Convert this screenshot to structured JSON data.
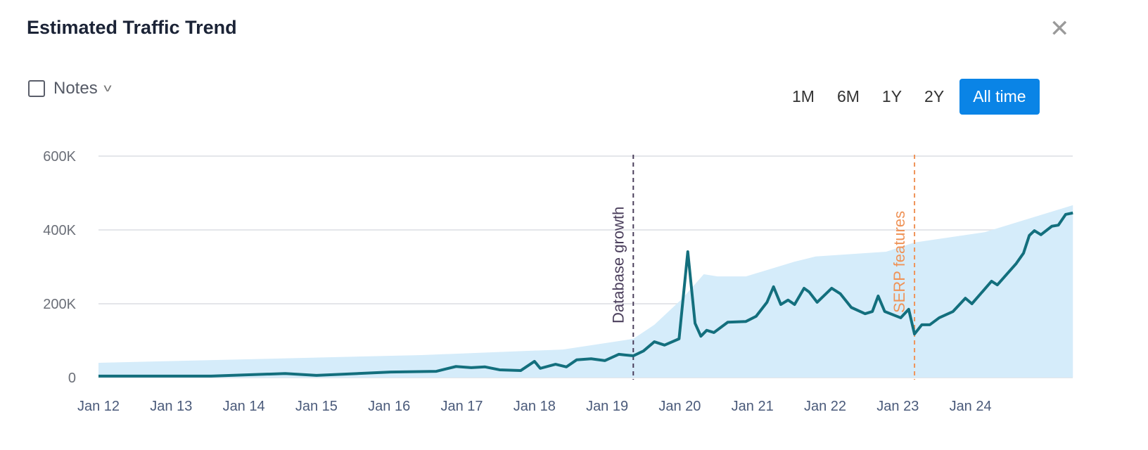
{
  "header": {
    "title": "Estimated Traffic Trend",
    "close_icon": "close-icon"
  },
  "notes": {
    "label": "Notes",
    "checked": false
  },
  "ranges": [
    {
      "label": "1M",
      "active": false
    },
    {
      "label": "6M",
      "active": false
    },
    {
      "label": "1Y",
      "active": false
    },
    {
      "label": "2Y",
      "active": false
    },
    {
      "label": "All time",
      "active": true
    }
  ],
  "colors": {
    "line": "#136f7d",
    "area": "#d5ecfa",
    "database_marker": "#4b3f5c",
    "serp_marker": "#ef9358",
    "active_button": "#0a84e6"
  },
  "chart_data": {
    "type": "line",
    "title": "",
    "xlabel": "",
    "ylabel": "",
    "ylim": [
      0,
      600000
    ],
    "xlim": [
      "2012-01",
      "2025-05"
    ],
    "grid": true,
    "y_ticks": [
      "0",
      "200K",
      "400K",
      "600K"
    ],
    "y_tick_values": [
      0,
      200000,
      400000,
      600000
    ],
    "x_ticks": [
      "Jan 12",
      "Jan 13",
      "Jan 14",
      "Jan 15",
      "Jan 16",
      "Jan 17",
      "Jan 18",
      "Jan 19",
      "Jan 20",
      "Jan 21",
      "Jan 22",
      "Jan 23",
      "Jan 24"
    ],
    "x_tick_values": [
      2012,
      2013,
      2014,
      2015,
      2016,
      2017,
      2018,
      2019,
      2020,
      2021,
      2022,
      2023,
      2024
    ],
    "annotations": [
      {
        "label": "Database growth",
        "x": 2019.36
      },
      {
        "label": "SERP features",
        "x": 2023.23
      }
    ],
    "series": [
      {
        "type": "line",
        "points": [
          [
            2012.0,
            4
          ],
          [
            2013.55,
            4
          ],
          [
            2014.57,
            11
          ],
          [
            2015.0,
            6
          ],
          [
            2016.02,
            15
          ],
          [
            2016.65,
            17
          ],
          [
            2016.92,
            30
          ],
          [
            2017.13,
            27
          ],
          [
            2017.32,
            29
          ],
          [
            2017.52,
            21
          ],
          [
            2017.81,
            19
          ],
          [
            2018.0,
            44
          ],
          [
            2018.08,
            25
          ],
          [
            2018.29,
            36
          ],
          [
            2018.44,
            29
          ],
          [
            2018.58,
            48
          ],
          [
            2018.78,
            51
          ],
          [
            2018.97,
            46
          ],
          [
            2019.16,
            63
          ],
          [
            2019.36,
            59
          ],
          [
            2019.5,
            72
          ],
          [
            2019.65,
            97
          ],
          [
            2019.79,
            88
          ],
          [
            2019.99,
            105
          ],
          [
            2020.11,
            341
          ],
          [
            2020.21,
            147
          ],
          [
            2020.29,
            112
          ],
          [
            2020.37,
            128
          ],
          [
            2020.47,
            122
          ],
          [
            2020.66,
            150
          ],
          [
            2020.91,
            152
          ],
          [
            2021.05,
            166
          ],
          [
            2021.2,
            204
          ],
          [
            2021.29,
            246
          ],
          [
            2021.39,
            198
          ],
          [
            2021.49,
            210
          ],
          [
            2021.58,
            198
          ],
          [
            2021.71,
            242
          ],
          [
            2021.78,
            232
          ],
          [
            2021.89,
            204
          ],
          [
            2022.09,
            242
          ],
          [
            2022.21,
            227
          ],
          [
            2022.36,
            190
          ],
          [
            2022.55,
            173
          ],
          [
            2022.65,
            179
          ],
          [
            2022.73,
            221
          ],
          [
            2022.82,
            179
          ],
          [
            2023.04,
            162
          ],
          [
            2023.15,
            185
          ],
          [
            2023.23,
            118
          ],
          [
            2023.33,
            143
          ],
          [
            2023.44,
            143
          ],
          [
            2023.57,
            162
          ],
          [
            2023.76,
            179
          ],
          [
            2023.93,
            215
          ],
          [
            2024.02,
            200
          ],
          [
            2024.29,
            261
          ],
          [
            2024.37,
            251
          ],
          [
            2024.63,
            309
          ],
          [
            2024.73,
            337
          ],
          [
            2024.81,
            385
          ],
          [
            2024.88,
            398
          ],
          [
            2024.97,
            387
          ],
          [
            2025.12,
            410
          ],
          [
            2025.21,
            413
          ],
          [
            2025.31,
            442
          ],
          [
            2025.41,
            446
          ]
        ],
        "unit": "K"
      },
      {
        "type": "area",
        "points": [
          [
            2012.0,
            40
          ],
          [
            2016.45,
            61
          ],
          [
            2018.39,
            76
          ],
          [
            2019.36,
            105
          ],
          [
            2019.65,
            143
          ],
          [
            2020.03,
            213
          ],
          [
            2020.33,
            280
          ],
          [
            2020.52,
            274
          ],
          [
            2020.91,
            274
          ],
          [
            2021.58,
            314
          ],
          [
            2021.87,
            328
          ],
          [
            2022.84,
            341
          ],
          [
            2023.23,
            366
          ],
          [
            2024.2,
            394
          ],
          [
            2024.68,
            423
          ],
          [
            2025.41,
            467
          ]
        ],
        "unit": "K"
      }
    ]
  }
}
